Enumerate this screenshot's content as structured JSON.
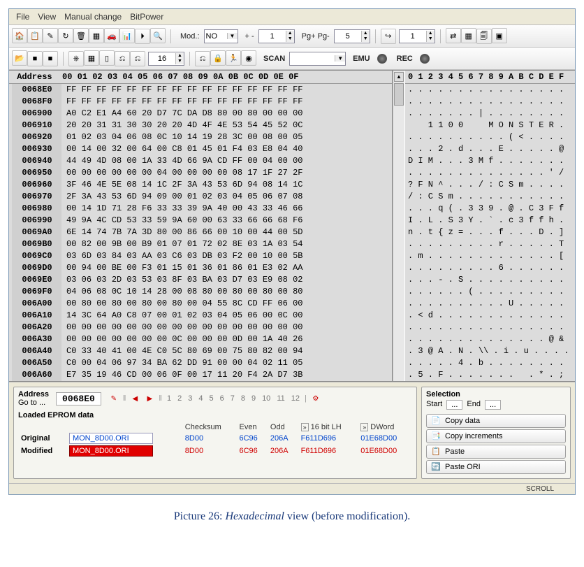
{
  "menu": {
    "file": "File",
    "view": "View",
    "manual": "Manual change",
    "bitpower": "BitPower"
  },
  "tb1": {
    "icons": [
      "🏠",
      "📋",
      "✎",
      "↻",
      "🗑",
      "▦",
      "🚗",
      "📊",
      "⏵",
      "🔍"
    ],
    "mod_label": "Mod.:",
    "mod_value": "NO",
    "plusminus": "+ -",
    "pm_value": "1",
    "pgpg": "Pg+ Pg-",
    "pg_value": "5",
    "goto_icon": "↪",
    "goto_value": "1",
    "right_icons": [
      "⇄",
      "▦",
      "🗐",
      "▣"
    ]
  },
  "tb2": {
    "left": [
      "📂",
      "■",
      "■"
    ],
    "mid": [
      "⎈",
      "▦",
      "▯",
      "⎌",
      "⎌"
    ],
    "width": "16",
    "group": [
      "⎌",
      "🔒",
      "🏃",
      "◉"
    ],
    "scan_label": "SCAN",
    "scan_value": "",
    "emu": "EMU",
    "rec": "REC"
  },
  "hex": {
    "addrTitle": "Address",
    "cols": [
      "00",
      "01",
      "02",
      "03",
      "04",
      "05",
      "06",
      "07",
      "08",
      "09",
      "0A",
      "0B",
      "0C",
      "0D",
      "0E",
      "0F"
    ],
    "asciiHdr": "0 1 2 3 4 5 6 7 8 9 A B C D E F",
    "rows": [
      {
        "a": "0068E0",
        "b": "FF FF FF FF FF FF FF FF FF FF FF FF FF FF FF FF",
        "t": ". . . . . . . . . . . . . . . ."
      },
      {
        "a": "0068F0",
        "b": "FF FF FF FF FF FF FF FF FF FF FF FF FF FF FF FF",
        "t": ". . . . . . . . . . . . . . . ."
      },
      {
        "a": "006900",
        "b": "A0 C2 E1 A4 60 20 D7 7C DA D8 80 00 80 00 00 00",
        "t": ". . . . . . . | . . . . . . . ."
      },
      {
        "a": "006910",
        "b": "20 20 31 31 30 30 20 20 4D 4F 4E 53 54 45 52 0C",
        "t": "    1 1 0 0     M O N S T E R ."
      },
      {
        "a": "006920",
        "b": "01 02 03 04 06 08 0C 10 14 19 28 3C 00 08 00 05",
        "t": ". . . . . . . . . . ( < . . . ."
      },
      {
        "a": "006930",
        "b": "00 14 00 32 00 64 00 C8 01 45 01 F4 03 E8 04 40",
        "t": ". . . 2 . d . . . E . . . . . @"
      },
      {
        "a": "006940",
        "b": "44 49 4D 08 00 1A 33 4D 66 9A CD FF 00 04 00 00",
        "t": "D I M . . . 3 M f . . . . . . ."
      },
      {
        "a": "006950",
        "b": "00 00 00 00 00 00 04 00 00 00 00 08 17 1F 27 2F",
        "t": ". . . . . . . . . . . . . . ' /"
      },
      {
        "a": "006960",
        "b": "3F 46 4E 5E 08 14 1C 2F 3A 43 53 6D 94 08 14 1C",
        "t": "? F N ^ . . . / : C S m . . . ."
      },
      {
        "a": "006970",
        "b": "2F 3A 43 53 6D 94 09 00 01 02 03 04 05 06 07 08",
        "t": "/ : C S m . . . . . . . . . . ."
      },
      {
        "a": "006980",
        "b": "00 14 1D 71 28 F6 33 33 39 9A 40 00 43 33 46 66",
        "t": ". . . q ( . 3 3 9 . @ . C 3 F f"
      },
      {
        "a": "006990",
        "b": "49 9A 4C CD 53 33 59 9A 60 00 63 33 66 66 68 F6",
        "t": "I . L . S 3 Y . ` . c 3 f f h ."
      },
      {
        "a": "0069A0",
        "b": "6E 14 74 7B 7A 3D 80 00 86 66 00 10 00 44 00 5D",
        "t": "n . t { z = . . . f . . . D . ]"
      },
      {
        "a": "0069B0",
        "b": "00 82 00 9B 00 B9 01 07 01 72 02 8E 03 1A 03 54",
        "t": ". . . . . . . . . r . . . . . T"
      },
      {
        "a": "0069C0",
        "b": "03 6D 03 84 03 AA 03 C6 03 DB 03 F2 00 10 00 5B",
        "t": ". m . . . . . . . . . . . . . ["
      },
      {
        "a": "0069D0",
        "b": "00 94 00 BE 00 F3 01 15 01 36 01 86 01 E3 02 AA",
        "t": ". . . . . . . . . 6 . . . . . ."
      },
      {
        "a": "0069E0",
        "b": "03 06 03 2D 03 53 03 8F 03 BA 03 D7 03 E9 08 02",
        "t": ". . . - . S . . . . . . . . . ."
      },
      {
        "a": "0069F0",
        "b": "04 06 08 0C 10 14 28 00 08 80 00 80 00 80 00 80",
        "t": ". . . . . . ( . . . . . . . . ."
      },
      {
        "a": "006A00",
        "b": "00 80 00 80 00 80 00 80 00 04 55 8C CD FF 06 00",
        "t": ". . . . . . . . . . U . . . . ."
      },
      {
        "a": "006A10",
        "b": "14 3C 64 A0 C8 07 00 01 02 03 04 05 06 00 0C 00",
        "t": ". < d . . . . . . . . . . . . ."
      },
      {
        "a": "006A20",
        "b": "00 00 00 00 00 00 00 00 00 00 00 00 00 00 00 00",
        "t": ". . . . . . . . . . . . . . . ."
      },
      {
        "a": "006A30",
        "b": "00 00 00 00 00 00 00 0C 00 00 00 0D 00 1A 40 26",
        "t": ". . . . . . . . . . . . . . @ &"
      },
      {
        "a": "006A40",
        "b": "C0 33 40 41 00 4E C0 5C 80 69 00 75 80 82 00 94",
        "t": ". 3 @ A . N . \\\\ . i . u . . . ."
      },
      {
        "a": "006A50",
        "b": "C0 00 04 06 97 34 BA 62 DD 91 00 00 04 02 11 05",
        "t": ". . . . . 4 . b . . . . . . . ."
      },
      {
        "a": "006A60",
        "b": "E7 35 19 46 CD 00 06 0F 00 17 11 20 F4 2A D7 3B",
        "t": ". 5 . F . . . . . . .   . * . ;"
      }
    ]
  },
  "nav": {
    "addrTitle": "Address",
    "goto": "Go to ...",
    "current": "0068E0",
    "nums": [
      "1",
      "2",
      "3",
      "4",
      "5",
      "6",
      "7",
      "8",
      "9",
      "10",
      "11",
      "12"
    ]
  },
  "eprom": {
    "title": "Loaded EPROM data",
    "cols": {
      "checksum": "Checksum",
      "even": "Even",
      "odd": "Odd",
      "bit16": "16 bit LH",
      "dword": "DWord"
    },
    "orig": {
      "label": "Original",
      "file": "MON_8D00.ORI",
      "checksum": "8D00",
      "even": "6C96",
      "odd": "206A",
      "bit16": "F611D696",
      "dword": "01E68D00"
    },
    "mod": {
      "label": "Modified",
      "file": "MON_8D00.ORI",
      "checksum": "8D00",
      "even": "6C96",
      "odd": "206A",
      "bit16": "F611D696",
      "dword": "01E68D00"
    }
  },
  "sel": {
    "title": "Selection",
    "start": "Start",
    "end": "End",
    "sVal": "...",
    "eVal": "..."
  },
  "actions": {
    "copy": "Copy data",
    "copyInc": "Copy increments",
    "paste": "Paste",
    "pasteOri": "Paste ORI"
  },
  "status": {
    "scroll": "SCROLL"
  },
  "caption": {
    "pre": "Picture 26: ",
    "em": "Hexadecimal",
    "post": " view (before modification)."
  }
}
